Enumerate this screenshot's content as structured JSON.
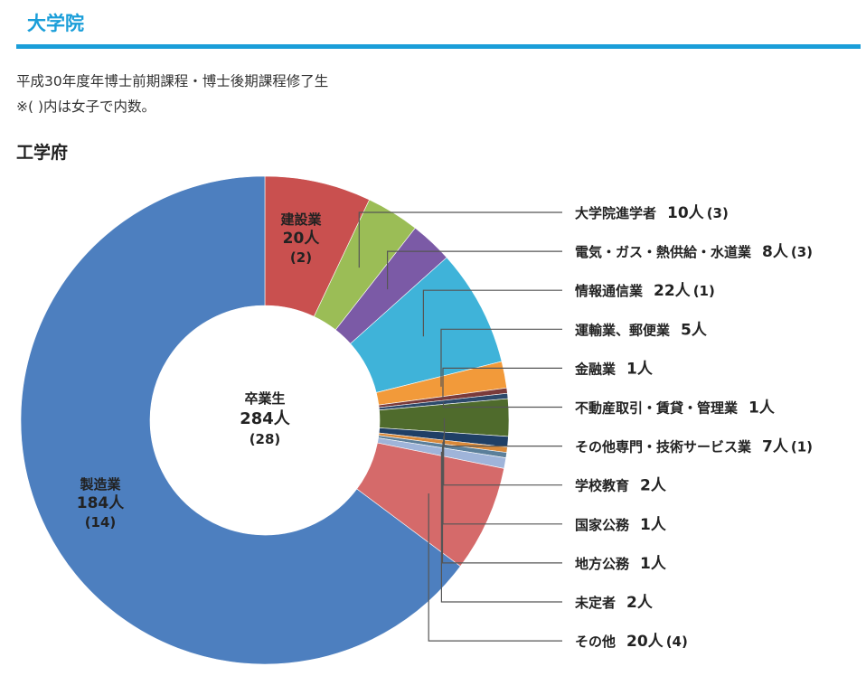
{
  "header": {
    "title": "大学院"
  },
  "description": {
    "line1": "平成30年度年博士前期課程・博士後期課程修了生",
    "line2": "※( )内は女子で内数。"
  },
  "section": {
    "title": "工学府"
  },
  "chart_data": {
    "type": "pie",
    "style": "donut",
    "center": {
      "line1": "卒業生",
      "line2": "284人",
      "line3": "(28)"
    },
    "slices": [
      {
        "label": "建設業",
        "value": 20,
        "value_text": "20人",
        "female_text": "(2)",
        "color": "#c9504f",
        "inline": true
      },
      {
        "label": "大学院進学者",
        "value": 10,
        "value_text": "10人",
        "female_text": "(3)",
        "color": "#9bbd56"
      },
      {
        "label": "電気・ガス・熱供給・水道業",
        "value": 8,
        "value_text": "8人",
        "female_text": "(3)",
        "color": "#7b5aa6"
      },
      {
        "label": "情報通信業",
        "value": 22,
        "value_text": "22人",
        "female_text": "(1)",
        "color": "#3fb3d9"
      },
      {
        "label": "運輸業、郵便業",
        "value": 5,
        "value_text": "5人",
        "female_text": "",
        "color": "#f29a3a"
      },
      {
        "label": "金融業",
        "value": 1,
        "value_text": "1人",
        "female_text": "",
        "color": "#7a3b3b"
      },
      {
        "label": "不動産取引・賃貸・管理業",
        "value": 1,
        "value_text": "1人",
        "female_text": "",
        "color": "#2d4a6b"
      },
      {
        "label": "その他専門・技術サービス業",
        "value": 7,
        "value_text": "7人",
        "female_text": "(1)",
        "color": "#4f6b2c"
      },
      {
        "label": "学校教育",
        "value": 2,
        "value_text": "2人",
        "female_text": "",
        "color": "#1f3f66"
      },
      {
        "label": "国家公務",
        "value": 1,
        "value_text": "1人",
        "female_text": "",
        "color": "#d9893a"
      },
      {
        "label": "地方公務",
        "value": 1,
        "value_text": "1人",
        "female_text": "",
        "color": "#5b7f9a"
      },
      {
        "label": "未定者",
        "value": 2,
        "value_text": "2人",
        "female_text": "",
        "color": "#9fb4d9"
      },
      {
        "label": "その他",
        "value": 20,
        "value_text": "20人",
        "female_text": "(4)",
        "color": "#d56a6a"
      },
      {
        "label": "製造業",
        "value": 184,
        "value_text": "184人",
        "female_text": "(14)",
        "color": "#4d7fbf",
        "inline": true
      }
    ]
  }
}
